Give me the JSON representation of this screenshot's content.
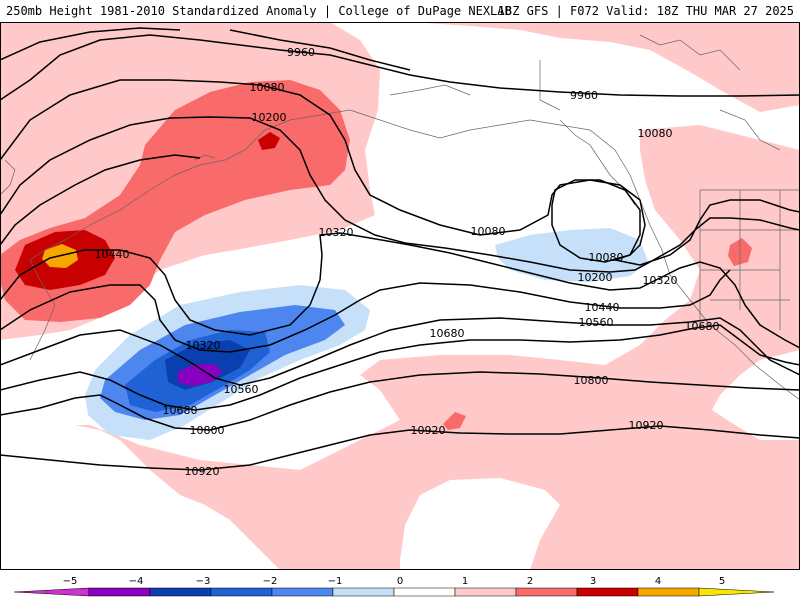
{
  "header": {
    "left_title": "250mb Height 1981-2010 Standardized Anomaly | College of DuPage NEXLAB",
    "right_title": "18Z GFS | F072 Valid: 18Z THU MAR 27 2025"
  },
  "contours": {
    "labels": [
      "9960",
      "9960",
      "10080",
      "10200",
      "10080",
      "10080",
      "10080",
      "10440",
      "10320",
      "10200",
      "10320",
      "10440",
      "10560",
      "10320",
      "10560",
      "10680",
      "10680",
      "10680",
      "10800",
      "10800",
      "10920",
      "10920",
      "10920"
    ]
  },
  "legend": {
    "ticks": [
      "−5",
      "−4",
      "−3",
      "−2",
      "−1",
      "0",
      "1",
      "2",
      "3",
      "4",
      "5"
    ],
    "colors": [
      "#d030d0",
      "#8a00c0",
      "#0a3fb0",
      "#1f62d6",
      "#4c86ee",
      "#c7e0fa",
      "#ffffff",
      "#ffc9c9",
      "#f96a6a",
      "#c80000",
      "#f7a600",
      "#f7e600"
    ]
  },
  "colors": {
    "anomaly_pos_1": "#ffc9c9",
    "anomaly_pos_2": "#f96a6a",
    "anomaly_pos_3": "#c80000",
    "anomaly_pos_4": "#f7a600",
    "anomaly_neg_1": "#c7e0fa",
    "anomaly_neg_2": "#4c86ee",
    "anomaly_neg_3": "#1f62d6",
    "anomaly_neg_4": "#0a3fb0",
    "anomaly_neg_5": "#8a00c0"
  }
}
